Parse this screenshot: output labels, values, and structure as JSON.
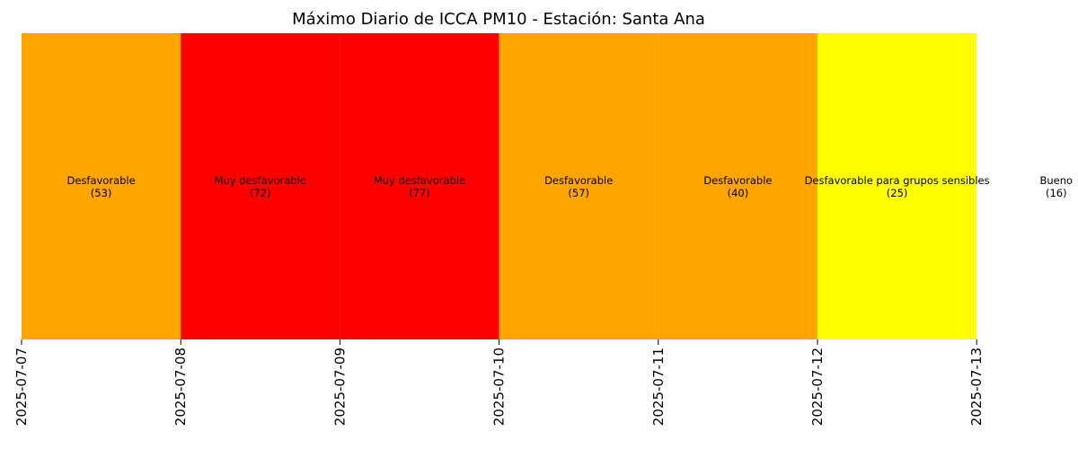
{
  "chart_data": {
    "type": "heatmap",
    "title": "Máximo Diario de ICCA PM10 - Estación: Santa Ana",
    "x_ticks": [
      "2025-07-07",
      "2025-07-08",
      "2025-07-09",
      "2025-07-10",
      "2025-07-11",
      "2025-07-12",
      "2025-07-13"
    ],
    "days": [
      {
        "date": "2025-07-07",
        "category": "Desfavorable",
        "value": 53,
        "color": "#ffa500"
      },
      {
        "date": "2025-07-08",
        "category": "Muy desfavorable",
        "value": 72,
        "color": "#ff0000"
      },
      {
        "date": "2025-07-09",
        "category": "Muy desfavorable",
        "value": 77,
        "color": "#ff0000"
      },
      {
        "date": "2025-07-10",
        "category": "Desfavorable",
        "value": 57,
        "color": "#ffa500"
      },
      {
        "date": "2025-07-11",
        "category": "Desfavorable",
        "value": 40,
        "color": "#ffa500"
      },
      {
        "date": "2025-07-12",
        "category": "Desfavorable para grupos sensibles",
        "value": 25,
        "color": "#ffff00"
      },
      {
        "date": "2025-07-13",
        "category": "Bueno",
        "value": 16,
        "color": "#ffffff"
      }
    ]
  }
}
